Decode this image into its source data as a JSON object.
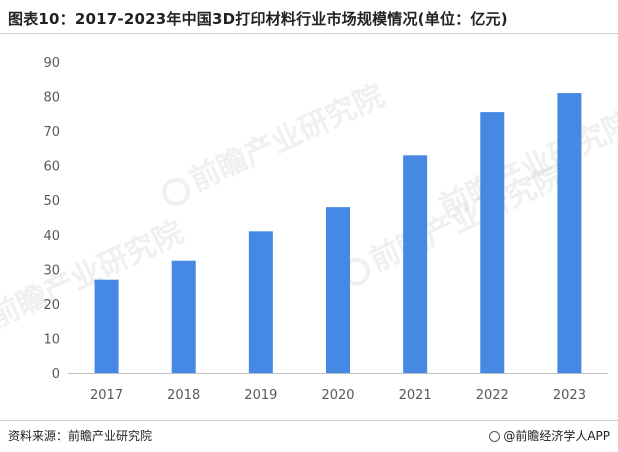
{
  "title": "图表10：2017-2023年中国3D打印材料行业市场规模情况(单位：亿元)",
  "footer": {
    "source": "资料来源：前瞻产业研究院",
    "brand": "@前瞻经济学人APP"
  },
  "watermark": "前瞻产业研究院",
  "colors": {
    "bar": "#4589e4",
    "axis": "#bfbfbf",
    "tick_text": "#595959"
  },
  "chart_data": {
    "type": "bar",
    "categories": [
      "2017",
      "2018",
      "2019",
      "2020",
      "2021",
      "2022",
      "2023"
    ],
    "values": [
      27,
      32.5,
      41,
      48,
      63,
      75.5,
      81
    ],
    "yticks": [
      0,
      10,
      20,
      30,
      40,
      50,
      60,
      70,
      80,
      90
    ],
    "ylim": [
      0,
      90
    ],
    "xlabel": "",
    "ylabel": "",
    "grid": false
  }
}
